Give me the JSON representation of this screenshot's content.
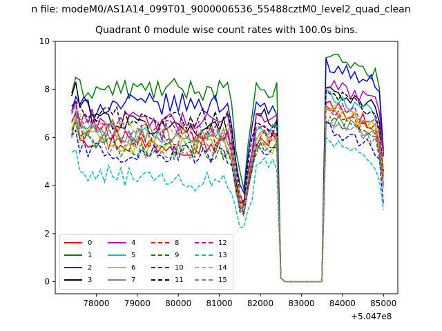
{
  "chart_data": {
    "type": "line",
    "suptitle": "n file: modeM0/AS1A14_099T01_9000006536_55488cztM0_level2_quad_clean",
    "title": "Quadrant 0 module wise count rates with 100.0s bins.",
    "xlabel": "",
    "ylabel": "",
    "x_offset_label": "+5.047e8",
    "xlim": [
      77000,
      85350
    ],
    "ylim": [
      -0.5,
      10
    ],
    "xticks": [
      78000,
      79000,
      80000,
      81000,
      82000,
      83000,
      84000,
      85000
    ],
    "xtick_labels": [
      "78000",
      "79000",
      "80000",
      "81000",
      "82000",
      "83000",
      "84000",
      "85000"
    ],
    "yticks": [
      0,
      2,
      4,
      6,
      8,
      10
    ],
    "ytick_labels": [
      "0",
      "2",
      "4",
      "6",
      "8",
      "10"
    ],
    "grid": false,
    "legend_position": "lower-left",
    "legend_columns": 4,
    "time_axis": {
      "seg1_start": 77400,
      "seg1_end": 81200,
      "drop_points": [
        81300,
        81400,
        81500,
        81600,
        81700,
        81800
      ],
      "seg2_start": 81900,
      "seg2_end": 82400,
      "gap_points": [
        82500,
        82600,
        82700,
        82800,
        82900,
        83000,
        83100,
        83200,
        83300,
        83400,
        83500
      ],
      "seg3_start": 83600,
      "seg3_end": 85000,
      "step": 100
    },
    "series": [
      {
        "name": "0",
        "color": "#ff0000",
        "dash": "solid",
        "start": 6.3,
        "level": 5.7,
        "after": 5.9,
        "peak": 7.4,
        "end": 4.0
      },
      {
        "name": "1",
        "color": "#008000",
        "dash": "solid",
        "start": 8.0,
        "level": 8.0,
        "after": 7.9,
        "peak": 9.5,
        "end": 5.5
      },
      {
        "name": "2",
        "color": "#0000ff",
        "dash": "solid",
        "start": 7.2,
        "level": 7.4,
        "after": 7.2,
        "peak": 9.1,
        "end": 5.3
      },
      {
        "name": "3",
        "color": "#000000",
        "dash": "solid",
        "start": 7.8,
        "level": 6.4,
        "after": 6.8,
        "peak": 8.1,
        "end": 5.3
      },
      {
        "name": "4",
        "color": "#bf00bf",
        "dash": "solid",
        "start": 7.0,
        "level": 6.6,
        "after": 6.9,
        "peak": 8.3,
        "end": 5.2
      },
      {
        "name": "5",
        "color": "#00bfbf",
        "dash": "solid",
        "start": 6.6,
        "level": 6.0,
        "after": 6.3,
        "peak": 7.8,
        "end": 4.5
      },
      {
        "name": "6",
        "color": "#bfbf00",
        "dash": "solid",
        "start": 6.3,
        "level": 5.6,
        "after": 5.6,
        "peak": 7.3,
        "end": 4.3
      },
      {
        "name": "7",
        "color": "#808080",
        "dash": "solid",
        "start": 6.5,
        "level": 6.2,
        "after": 6.1,
        "peak": 6.9,
        "end": 4.6
      },
      {
        "name": "8",
        "color": "#ff0000",
        "dash": "dashed",
        "start": 6.5,
        "level": 6.0,
        "after": 5.9,
        "peak": 7.1,
        "end": 4.3
      },
      {
        "name": "9",
        "color": "#008000",
        "dash": "dashed",
        "start": 6.1,
        "level": 5.5,
        "after": 5.7,
        "peak": 6.8,
        "end": 4.4
      },
      {
        "name": "10",
        "color": "#0000ff",
        "dash": "dashed",
        "start": 5.8,
        "level": 5.3,
        "after": 5.4,
        "peak": 6.4,
        "end": 3.2
      },
      {
        "name": "11",
        "color": "#000000",
        "dash": "dashed",
        "start": 7.0,
        "level": 6.8,
        "after": 6.4,
        "peak": 7.9,
        "end": 4.6
      },
      {
        "name": "12",
        "color": "#bf00bf",
        "dash": "dashed",
        "start": 6.8,
        "level": 6.3,
        "after": 6.3,
        "peak": 7.5,
        "end": 4.5
      },
      {
        "name": "13",
        "color": "#00bfbf",
        "dash": "dashed",
        "start": 5.0,
        "level": 4.2,
        "after": 4.8,
        "peak": 5.8,
        "end": 3.0
      },
      {
        "name": "14",
        "color": "#bfbf00",
        "dash": "dashed",
        "start": 6.7,
        "level": 6.2,
        "after": 6.0,
        "peak": 7.3,
        "end": 4.3
      },
      {
        "name": "15",
        "color": "#808080",
        "dash": "dashed",
        "start": 6.4,
        "level": 5.5,
        "after": 5.8,
        "peak": 6.7,
        "end": 3.9
      }
    ]
  }
}
